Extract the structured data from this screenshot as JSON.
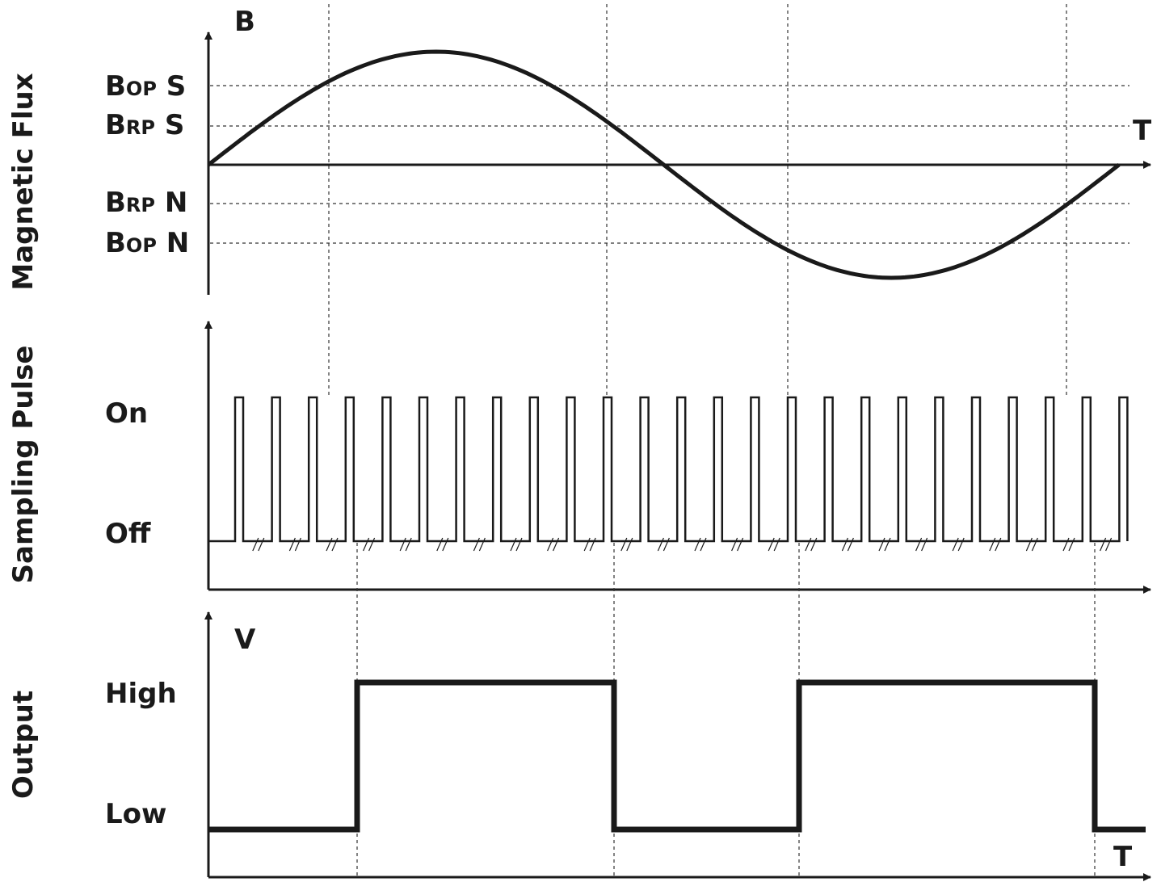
{
  "panels": {
    "flux": {
      "side_label": "Magnetic Flux",
      "y_axis_label": "B",
      "x_axis_label": "T",
      "levels": [
        {
          "prefix": "B",
          "sub": "OP",
          "suffix": " S"
        },
        {
          "prefix": "B",
          "sub": "RP",
          "suffix": " S"
        },
        {
          "prefix": "B",
          "sub": "RP",
          "suffix": " N"
        },
        {
          "prefix": "B",
          "sub": "OP",
          "suffix": " N"
        }
      ]
    },
    "sampling": {
      "side_label": "Sampling Pulse",
      "on_label": "On",
      "off_label": "Off",
      "pulse_count": 25
    },
    "output": {
      "side_label": "Output",
      "y_axis_label": "V",
      "x_axis_label": "T",
      "high_label": "High",
      "low_label": "Low"
    }
  }
}
